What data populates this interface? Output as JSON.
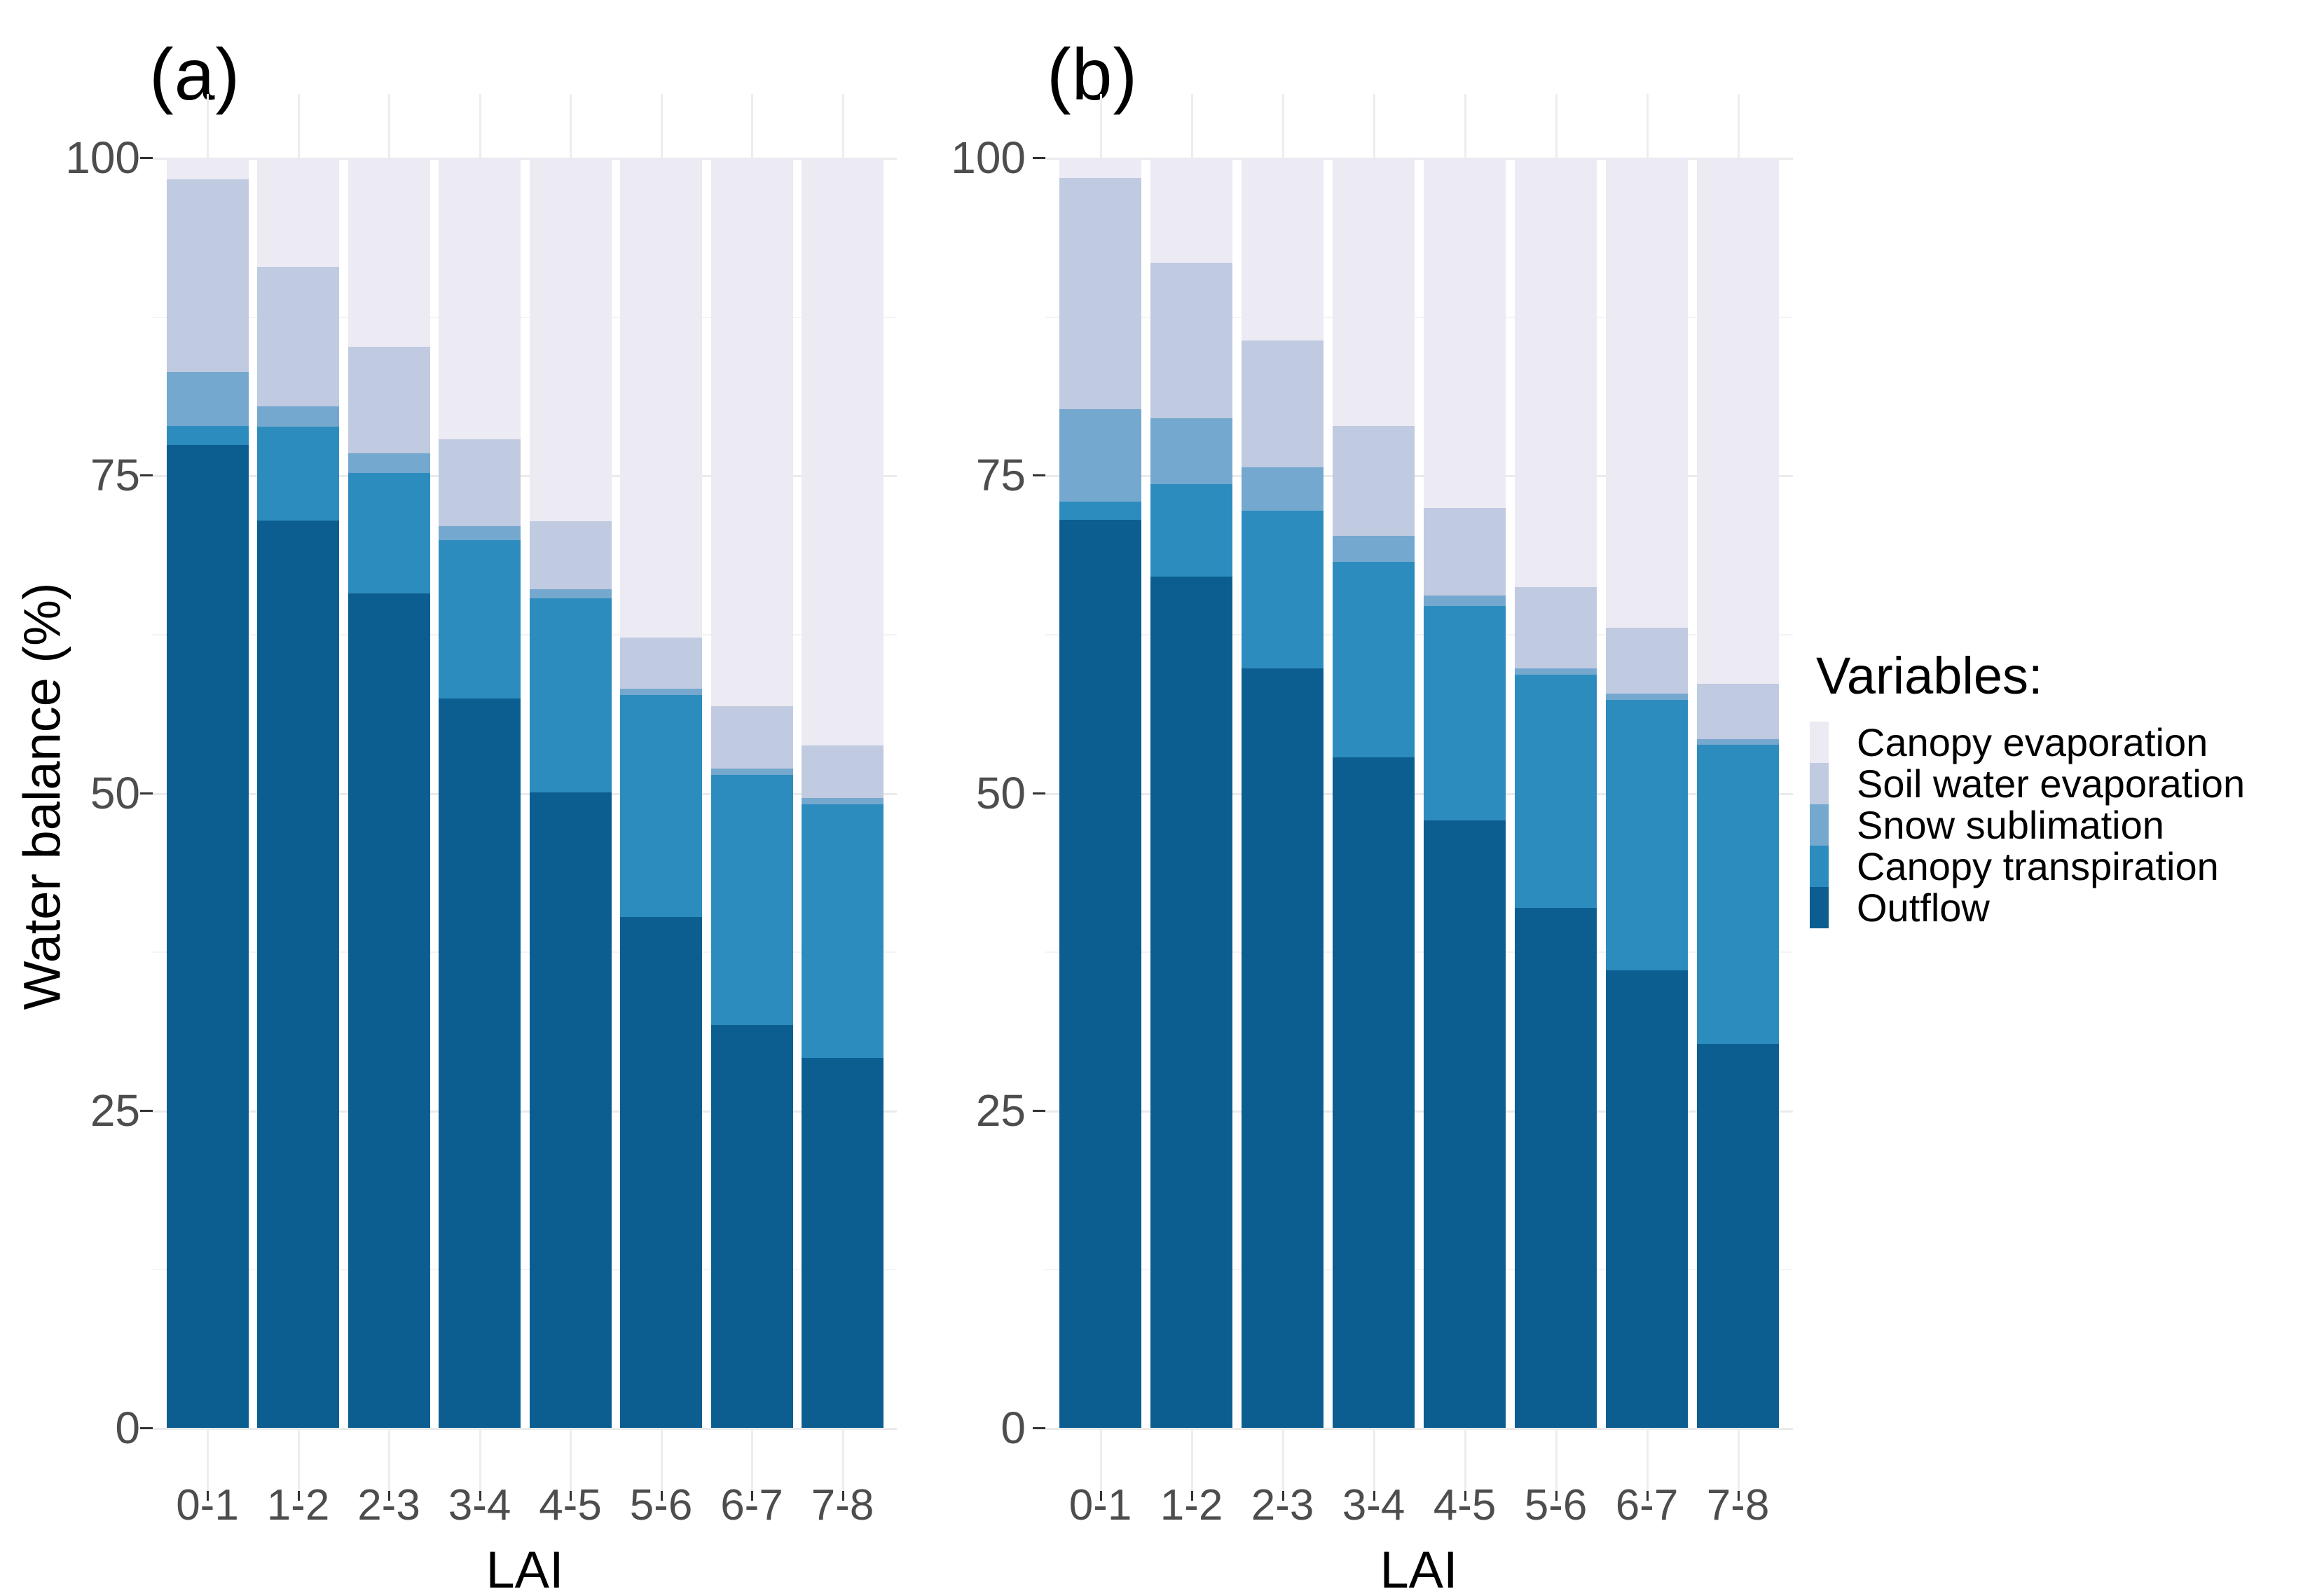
{
  "figure": {
    "panel_a_title": "(a)",
    "panel_b_title": "(b)",
    "y_axis_title": "Water balance (%)",
    "x_axis_title": "LAI",
    "legend_title": "Variables:"
  },
  "colors": {
    "canopy_evaporation": "#ECEAF3",
    "soil_water_evaporation": "#C0CAE1",
    "snow_sublimation": "#74A8CF",
    "canopy_transpiration": "#2D8CBE",
    "outflow": "#0C5E90",
    "axis_text": "#4d4d4d",
    "title_text": "#000000",
    "gridline_major": "#ebebeb",
    "gridline_minor": "#f4f4f4"
  },
  "chart_data": [
    {
      "type": "bar",
      "stacked": true,
      "panel_label": "(a)",
      "categories": [
        "0-1",
        "1-2",
        "2-3",
        "3-4",
        "4-5",
        "5-6",
        "6-7",
        "7-8"
      ],
      "xlabel": "LAI",
      "ylabel": "Water balance (%)",
      "ylim": [
        0,
        100
      ],
      "yticks": [
        "0",
        "25",
        "50",
        "75",
        "100"
      ],
      "grid": true,
      "legend_position": "right",
      "series": [
        {
          "name": "Canopy evaporation",
          "color_key": "canopy_evaporation",
          "values": [
            1.7,
            8.6,
            14.9,
            22.2,
            28.6,
            37.8,
            43.2,
            46.3
          ]
        },
        {
          "name": "Soil water evaporation",
          "color_key": "soil_water_evaporation",
          "values": [
            15.2,
            11.0,
            8.4,
            6.8,
            5.4,
            4.0,
            4.9,
            4.1
          ]
        },
        {
          "name": "Snow sublimation",
          "color_key": "snow_sublimation",
          "values": [
            4.2,
            1.6,
            1.5,
            1.1,
            0.7,
            0.5,
            0.5,
            0.5
          ]
        },
        {
          "name": "Canopy transpiration",
          "color_key": "canopy_transpiration",
          "values": [
            1.5,
            7.4,
            9.5,
            12.5,
            15.3,
            17.5,
            19.7,
            20.0
          ]
        },
        {
          "name": "Outflow",
          "color_key": "outflow",
          "values": [
            77.4,
            71.4,
            65.7,
            57.4,
            50.0,
            40.2,
            31.7,
            29.1
          ]
        }
      ]
    },
    {
      "type": "bar",
      "stacked": true,
      "panel_label": "(b)",
      "categories": [
        "0-1",
        "1-2",
        "2-3",
        "3-4",
        "4-5",
        "5-6",
        "6-7",
        "7-8"
      ],
      "xlabel": "LAI",
      "ylabel": "Water balance (%)",
      "ylim": [
        0,
        100
      ],
      "yticks": [
        "0",
        "25",
        "50",
        "75",
        "100"
      ],
      "grid": true,
      "legend_position": "right",
      "series": [
        {
          "name": "Canopy evaporation",
          "color_key": "canopy_evaporation",
          "values": [
            1.6,
            8.3,
            14.4,
            21.1,
            27.6,
            33.8,
            37.0,
            41.4
          ]
        },
        {
          "name": "Soil water evaporation",
          "color_key": "soil_water_evaporation",
          "values": [
            18.2,
            12.2,
            10.0,
            8.7,
            6.9,
            6.4,
            5.2,
            4.4
          ]
        },
        {
          "name": "Snow sublimation",
          "color_key": "snow_sublimation",
          "values": [
            7.3,
            5.2,
            3.4,
            2.0,
            0.8,
            0.5,
            0.5,
            0.4
          ]
        },
        {
          "name": "Canopy transpiration",
          "color_key": "canopy_transpiration",
          "values": [
            1.4,
            7.3,
            12.4,
            15.4,
            16.9,
            18.4,
            21.3,
            23.6
          ]
        },
        {
          "name": "Outflow",
          "color_key": "outflow",
          "values": [
            71.5,
            67.0,
            59.8,
            52.8,
            47.8,
            40.9,
            36.0,
            30.2
          ]
        }
      ]
    }
  ],
  "legend": {
    "title": "Variables:",
    "items": [
      "Canopy evaporation",
      "Soil water evaporation",
      "Snow sublimation",
      "Canopy transpiration",
      "Outflow"
    ]
  }
}
